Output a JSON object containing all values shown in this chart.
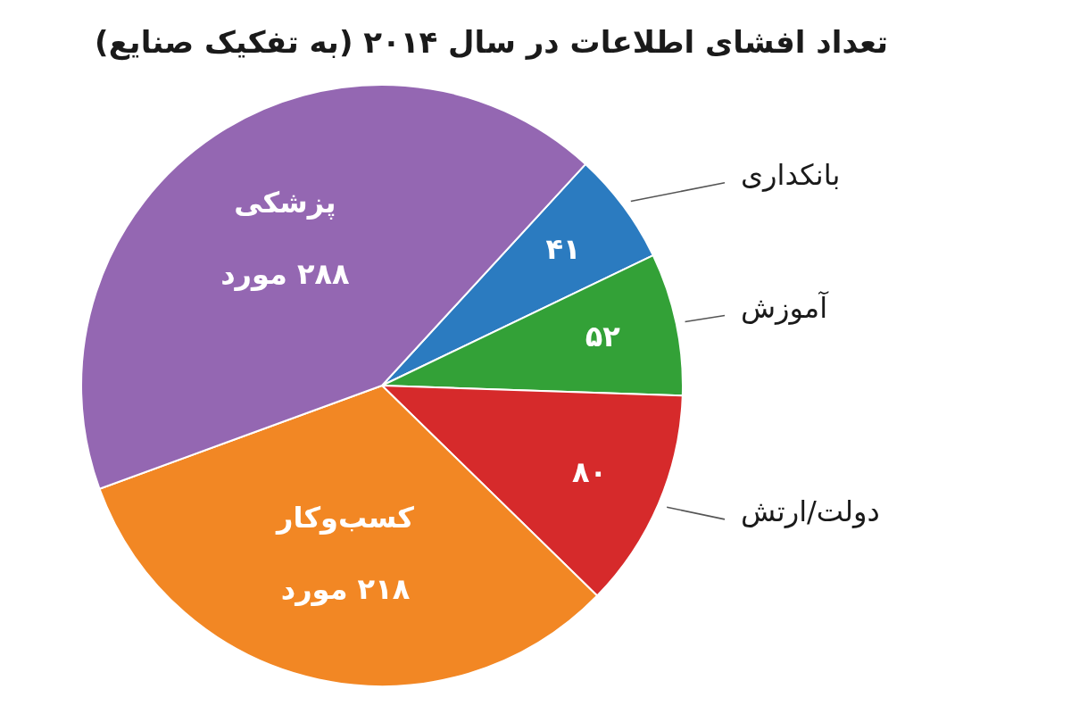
{
  "chart_data": {
    "type": "pie",
    "title": "تعداد افشای اطلاعات در سال ۲۰۱۴ (به تفکیک صنایع)",
    "categories": [
      "بانکداری",
      "آموزش",
      "دولت/ارتش",
      "کسب‌وکار",
      "پزشکی"
    ],
    "values": [
      41,
      52,
      80,
      218,
      288
    ],
    "colors": [
      "#2b7bc0",
      "#33a137",
      "#d62a2b",
      "#f28724",
      "#9467b2"
    ],
    "value_labels": [
      "۴۱",
      "۵۲",
      "۸۰",
      "۲۱۸ مورد",
      "۲۸۸ مورد"
    ]
  }
}
